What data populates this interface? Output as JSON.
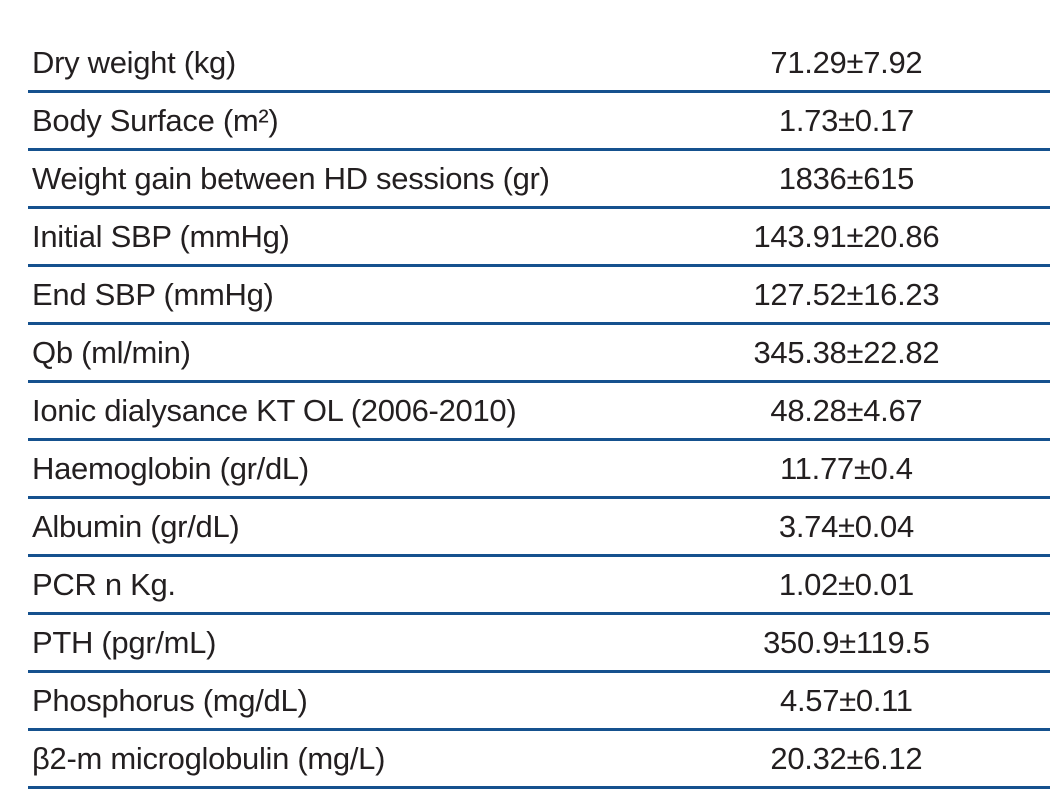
{
  "colors": {
    "rule_line": "#15518E",
    "text": "#231F20",
    "background": "#FFFFFF"
  },
  "table": {
    "rows": [
      {
        "label": "Dry weight (kg)",
        "value": "71.29±7.92"
      },
      {
        "label": "Body Surface (m²)",
        "value": "1.73±0.17"
      },
      {
        "label": "Weight gain between HD sessions (gr)",
        "value": "1836±615"
      },
      {
        "label": "Initial SBP (mmHg)",
        "value": "143.91±20.86"
      },
      {
        "label": "End SBP (mmHg)",
        "value": "127.52±16.23"
      },
      {
        "label": "Qb (ml/min)",
        "value": "345.38±22.82"
      },
      {
        "label": "Ionic dialysance KT OL (2006-2010)",
        "value": "48.28±4.67"
      },
      {
        "label": "Haemoglobin (gr/dL)",
        "value": "11.77±0.4"
      },
      {
        "label": "Albumin (gr/dL)",
        "value": "3.74±0.04"
      },
      {
        "label": "PCR n Kg.",
        "value": "1.02±0.01"
      },
      {
        "label": "PTH (pgr/mL)",
        "value": "350.9±119.5"
      },
      {
        "label": "Phosphorus (mg/dL)",
        "value": "4.57±0.11"
      },
      {
        "label": "β2-m microglobulin (mg/L)",
        "value": "20.32±6.12"
      }
    ]
  }
}
